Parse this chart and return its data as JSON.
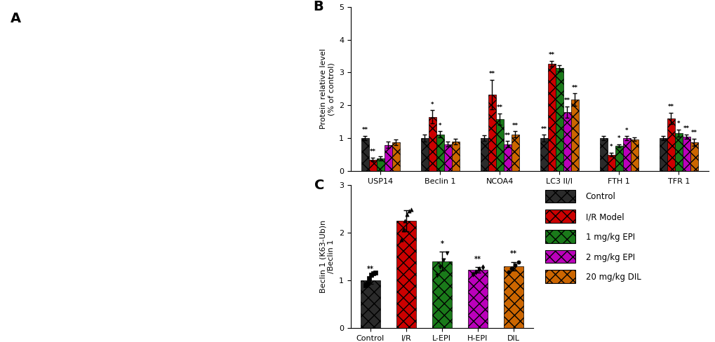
{
  "panel_B": {
    "ylabel": "Protein relative level\n(% of control)",
    "ylim": [
      0,
      5
    ],
    "yticks": [
      0,
      1,
      2,
      3,
      4,
      5
    ],
    "groups": [
      "USP14",
      "Beclin 1",
      "NCOA4",
      "LC3 II/I",
      "FTH 1",
      "TFR 1"
    ],
    "series": [
      "Control",
      "I/R Model",
      "1 mg/kg EPI",
      "2 mg/kg EPI",
      "20 mg/kg DIL"
    ],
    "colors": [
      "#2b2b2b",
      "#cc0000",
      "#1a7a1a",
      "#bb00bb",
      "#cc6600"
    ],
    "values": [
      [
        1.0,
        0.35,
        0.38,
        0.8,
        0.87
      ],
      [
        1.0,
        1.65,
        1.12,
        0.82,
        0.9
      ],
      [
        1.0,
        2.32,
        1.58,
        0.82,
        1.12
      ],
      [
        1.0,
        3.27,
        3.13,
        1.8,
        2.17
      ],
      [
        1.0,
        0.5,
        0.77,
        1.0,
        0.97
      ],
      [
        1.0,
        1.6,
        1.15,
        1.05,
        0.87
      ]
    ],
    "errors": [
      [
        0.07,
        0.06,
        0.06,
        0.1,
        0.09
      ],
      [
        0.1,
        0.2,
        0.09,
        0.07,
        0.09
      ],
      [
        0.09,
        0.45,
        0.18,
        0.09,
        0.09
      ],
      [
        0.1,
        0.08,
        0.1,
        0.17,
        0.19
      ],
      [
        0.07,
        0.06,
        0.05,
        0.06,
        0.06
      ],
      [
        0.07,
        0.18,
        0.11,
        0.07,
        0.11
      ]
    ],
    "significance": [
      [
        "**",
        "**",
        "",
        "",
        ""
      ],
      [
        "",
        "*",
        "*",
        "",
        ""
      ],
      [
        "",
        "**",
        "**",
        "**",
        "**"
      ],
      [
        "**",
        "**",
        "",
        "**",
        "**"
      ],
      [
        "",
        "*",
        "*",
        "*",
        ""
      ],
      [
        "",
        "**",
        "*",
        "**",
        "**"
      ]
    ]
  },
  "panel_C": {
    "ylabel": "Beclin 1 (K63-Ub)n\n/Beclin 1",
    "ylim": [
      0,
      3
    ],
    "yticks": [
      0,
      1,
      2,
      3
    ],
    "groups": [
      "Control",
      "I/R",
      "L-EPI",
      "H-EPI",
      "DIL"
    ],
    "colors": [
      "#2b2b2b",
      "#cc0000",
      "#1a7a1a",
      "#bb00bb",
      "#cc6600"
    ],
    "values": [
      1.0,
      2.25,
      1.4,
      1.22,
      1.3
    ],
    "errors": [
      0.07,
      0.22,
      0.2,
      0.06,
      0.09
    ],
    "significance": [
      "**",
      "",
      "*",
      "**",
      "**"
    ],
    "marker_data": [
      [
        0.9,
        0.95,
        1.05,
        1.12,
        1.15,
        1.17
      ],
      [
        1.85,
        2.05,
        2.25,
        2.38,
        2.45,
        2.48
      ],
      [
        1.1,
        1.28,
        1.42,
        1.58
      ],
      [
        1.14,
        1.18,
        1.24,
        1.28
      ],
      [
        1.18,
        1.25,
        1.33,
        1.38
      ]
    ],
    "markers": [
      "s",
      "^",
      "v",
      "d",
      "o"
    ]
  },
  "legend_labels": [
    "Control",
    "I/R Model",
    "1 mg/kg EPI",
    "2 mg/kg EPI",
    "20 mg/kg DIL"
  ],
  "legend_colors": [
    "#2b2b2b",
    "#cc0000",
    "#1a7a1a",
    "#bb00bb",
    "#cc6600"
  ],
  "bg_color": "#ffffff"
}
